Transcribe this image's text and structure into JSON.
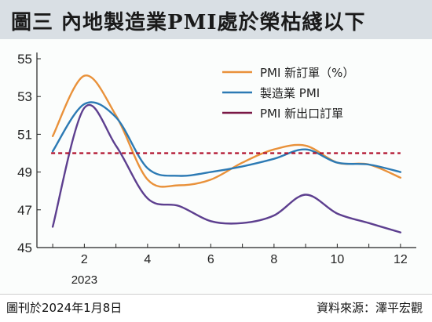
{
  "header": {
    "title": "圖三 內地製造業PMI處於榮枯綫以下"
  },
  "footer": {
    "published": "圖刊於2024年1月8日",
    "source": "資料來源：澤平宏觀"
  },
  "chart_data": {
    "type": "line",
    "title": "",
    "xlabel": "",
    "ylabel": "",
    "xlim": [
      0.5,
      12.5
    ],
    "ylim": [
      45,
      55
    ],
    "x_ticks": [
      2,
      4,
      6,
      8,
      10,
      12
    ],
    "y_ticks": [
      45,
      47,
      49,
      51,
      53,
      55
    ],
    "x_sublabel": {
      "x": 2,
      "text": "2023"
    },
    "legend_position": "top-right",
    "grid": false,
    "series": [
      {
        "name": "PMI 新訂單（%）",
        "color": "#e9913a",
        "x": [
          1,
          2,
          3,
          4,
          5,
          6,
          7,
          8,
          9,
          10,
          11,
          12
        ],
        "values": [
          50.9,
          54.1,
          52.0,
          48.6,
          48.3,
          48.6,
          49.5,
          50.2,
          50.4,
          49.5,
          49.4,
          48.7
        ]
      },
      {
        "name": "製造業 PMI",
        "color": "#2c7ab4",
        "x": [
          1,
          2,
          3,
          4,
          5,
          6,
          7,
          8,
          9,
          10,
          11,
          12
        ],
        "values": [
          50.1,
          52.6,
          51.9,
          49.2,
          48.8,
          49.0,
          49.3,
          49.7,
          50.2,
          49.5,
          49.4,
          49.0
        ]
      },
      {
        "name": "PMI 新出口訂單",
        "color": "#5d3f8f",
        "x": [
          1,
          2,
          3,
          4,
          5,
          6,
          7,
          8,
          9,
          10,
          11,
          12
        ],
        "values": [
          46.1,
          52.4,
          50.4,
          47.6,
          47.2,
          46.4,
          46.3,
          46.7,
          47.8,
          46.8,
          46.3,
          45.8
        ]
      }
    ],
    "reference_line": {
      "y": 50,
      "color": "#b0102c"
    },
    "legend_key_color": "#7a1846"
  }
}
